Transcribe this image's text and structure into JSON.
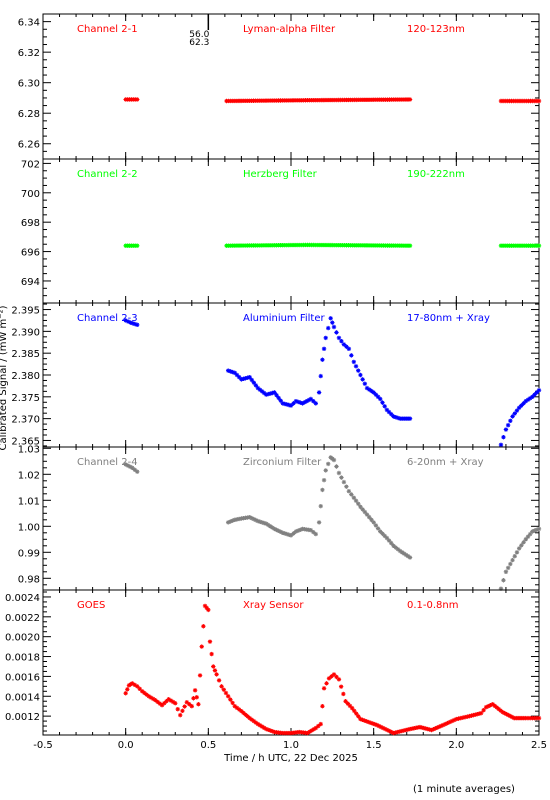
{
  "chart_data": {
    "type": "scatter",
    "xlabel": "Time / h UTC, 22 Dec 2025",
    "ylabel": "Calibrated Signal / (mW m⁻²)",
    "footnote": "(1 minute averages)",
    "xlim": [
      -0.5,
      2.5
    ],
    "x_ticks": [
      "-0.5",
      "0.0",
      "0.5",
      "1.0",
      "1.5",
      "2.0",
      "2.5"
    ],
    "marker_annotation": {
      "x": 0.5,
      "lines": [
        "56.0",
        "62.3"
      ]
    },
    "panels": [
      {
        "channel": "Channel 2-1",
        "filter": "Lyman-alpha Filter",
        "band": "120-123nm",
        "color": "#ff0000",
        "ylim": [
          6.25,
          6.345
        ],
        "y_ticks": [
          "6.26",
          "6.28",
          "6.30",
          "6.32",
          "6.34"
        ],
        "series": [
          {
            "x": [
              0.0,
              0.07
            ],
            "y": [
              6.289,
              6.289
            ]
          },
          {
            "x": [
              0.61,
              1.1,
              1.72
            ],
            "y": [
              6.288,
              6.2885,
              6.289
            ]
          },
          {
            "x": [
              2.27,
              2.5
            ],
            "y": [
              6.288,
              6.288
            ]
          }
        ]
      },
      {
        "channel": "Channel 2-2",
        "filter": "Herzberg Filter",
        "band": "190-222nm",
        "color": "#00ff00",
        "ylim": [
          692.5,
          702.3
        ],
        "y_ticks": [
          "694",
          "696",
          "698",
          "700",
          "702"
        ],
        "series": [
          {
            "x": [
              0.0,
              0.07
            ],
            "y": [
              696.4,
              696.4
            ]
          },
          {
            "x": [
              0.61,
              1.1,
              1.72
            ],
            "y": [
              696.4,
              696.45,
              696.4
            ]
          },
          {
            "x": [
              2.27,
              2.5
            ],
            "y": [
              696.4,
              696.4
            ]
          }
        ]
      },
      {
        "channel": "Channel 2-3",
        "filter": "Aluminium Filter",
        "band": "17-80nm + Xray",
        "color": "#0000ff",
        "ylim": [
          2.3635,
          2.3965
        ],
        "y_ticks": [
          "2.365",
          "2.370",
          "2.375",
          "2.380",
          "2.385",
          "2.390",
          "2.395"
        ],
        "series": [
          {
            "x": [
              0.0,
              0.03,
              0.07
            ],
            "y": [
              2.3925,
              2.392,
              2.3915
            ]
          },
          {
            "x": [
              0.62,
              0.66,
              0.7,
              0.75,
              0.8,
              0.85,
              0.9,
              0.95,
              1.0,
              1.03,
              1.07,
              1.12,
              1.15
            ],
            "y": [
              2.381,
              2.3805,
              2.379,
              2.3795,
              2.377,
              2.3755,
              2.376,
              2.3735,
              2.373,
              2.374,
              2.3735,
              2.3745,
              2.3735
            ]
          },
          {
            "x": [
              1.17,
              1.19,
              1.21,
              1.24,
              1.26,
              1.29,
              1.32,
              1.35,
              1.38,
              1.42,
              1.46,
              1.5,
              1.54,
              1.58,
              1.62,
              1.66,
              1.72
            ],
            "y": [
              2.376,
              2.3835,
              2.3885,
              2.393,
              2.391,
              2.3885,
              2.387,
              2.386,
              2.383,
              2.38,
              2.377,
              2.376,
              2.3745,
              2.372,
              2.3705,
              2.37,
              2.37
            ]
          },
          {
            "x": [
              2.27,
              2.3,
              2.34,
              2.38,
              2.42,
              2.46,
              2.5
            ],
            "y": [
              2.364,
              2.3675,
              2.3705,
              2.3725,
              2.374,
              2.375,
              2.3765
            ]
          }
        ]
      },
      {
        "channel": "Channel 2-4",
        "filter": "Zirconium Filter",
        "band": "6-20nm + Xray",
        "color": "#808080",
        "ylim": [
          0.9755,
          1.0305
        ],
        "y_ticks": [
          "0.98",
          "0.99",
          "1.00",
          "1.01",
          "1.02",
          "1.03"
        ],
        "series": [
          {
            "x": [
              0.0,
              0.04,
              0.07
            ],
            "y": [
              1.0238,
              1.0225,
              1.021
            ]
          },
          {
            "x": [
              0.62,
              0.66,
              0.7,
              0.75,
              0.8,
              0.85,
              0.9,
              0.95,
              1.0,
              1.03,
              1.07,
              1.12,
              1.15
            ],
            "y": [
              1.0015,
              1.0025,
              1.003,
              1.0035,
              1.002,
              1.001,
              0.999,
              0.9975,
              0.9965,
              0.998,
              0.999,
              0.9985,
              0.997
            ]
          },
          {
            "x": [
              1.17,
              1.19,
              1.21,
              1.24,
              1.26,
              1.29,
              1.32,
              1.35,
              1.38,
              1.42,
              1.46,
              1.5,
              1.54,
              1.58,
              1.62,
              1.66,
              1.72
            ],
            "y": [
              1.0015,
              1.014,
              1.0215,
              1.0265,
              1.0255,
              1.0205,
              1.017,
              1.0135,
              1.011,
              1.0075,
              1.0045,
              1.0015,
              0.998,
              0.9955,
              0.9925,
              0.9905,
              0.988
            ]
          },
          {
            "x": [
              2.27,
              2.3,
              2.34,
              2.38,
              2.42,
              2.46,
              2.5
            ],
            "y": [
              0.976,
              0.9825,
              0.987,
              0.9915,
              0.995,
              0.998,
              0.999
            ]
          }
        ]
      },
      {
        "channel": "GOES",
        "filter": "Xray Sensor",
        "band": "0.1-0.8nm",
        "color": "#ff0000",
        "ylim": [
          0.00101,
          0.00247
        ],
        "y_ticks": [
          "0.0012",
          "0.0014",
          "0.0016",
          "0.0018",
          "0.0020",
          "0.0022",
          "0.0024"
        ],
        "series": [
          {
            "x": [
              0.0,
              0.02,
              0.04,
              0.07,
              0.1,
              0.14,
              0.18,
              0.22,
              0.26,
              0.3,
              0.33,
              0.37,
              0.4,
              0.42,
              0.44,
              0.46,
              0.48,
              0.5,
              0.51,
              0.53,
              0.55,
              0.58,
              0.62,
              0.66,
              0.7,
              0.75,
              0.8,
              0.85,
              0.9,
              0.95,
              1.0,
              1.05,
              1.1,
              1.15,
              1.18,
              1.2,
              1.23,
              1.26,
              1.29,
              1.33,
              1.37,
              1.42,
              1.47,
              1.52,
              1.57,
              1.62,
              1.67,
              1.72,
              1.78,
              1.85,
              1.92,
              2.0,
              2.08,
              2.15,
              2.18,
              2.22,
              2.28,
              2.35,
              2.42,
              2.5
            ],
            "y": [
              0.00143,
              0.00151,
              0.00153,
              0.0015,
              0.00145,
              0.0014,
              0.00136,
              0.00131,
              0.00137,
              0.00133,
              0.00121,
              0.00134,
              0.0013,
              0.00146,
              0.00132,
              0.0019,
              0.00231,
              0.00227,
              0.00195,
              0.0017,
              0.00162,
              0.0015,
              0.0014,
              0.0013,
              0.00125,
              0.00118,
              0.00112,
              0.00107,
              0.00104,
              0.00103,
              0.00103,
              0.00104,
              0.00103,
              0.00108,
              0.00112,
              0.00148,
              0.00158,
              0.00162,
              0.00157,
              0.00135,
              0.00128,
              0.00117,
              0.00114,
              0.00111,
              0.00107,
              0.00103,
              0.00105,
              0.00107,
              0.00109,
              0.00106,
              0.00111,
              0.00117,
              0.0012,
              0.00123,
              0.00129,
              0.00132,
              0.00124,
              0.00118,
              0.00118,
              0.00118
            ]
          }
        ]
      }
    ]
  }
}
